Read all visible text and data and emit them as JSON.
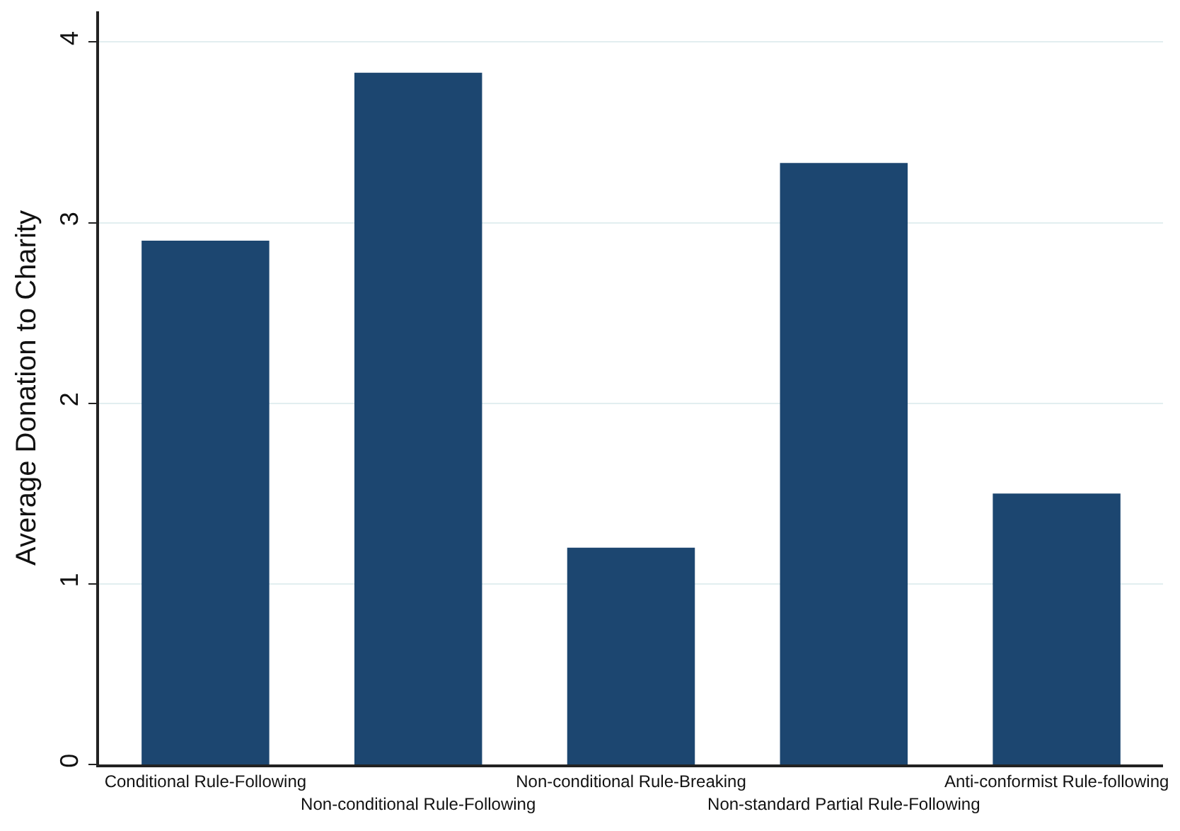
{
  "chart_data": {
    "type": "bar",
    "ylabel": "Average Donation to Charity",
    "categories": [
      "Conditional Rule-Following",
      "Non-conditional Rule-Following",
      "Non-conditional Rule-Breaking",
      "Non-standard Partial Rule-Following",
      "Anti-conformist Rule-following"
    ],
    "values": [
      2.9,
      3.83,
      1.2,
      3.33,
      1.5
    ],
    "color": "#1c4670",
    "ylim": [
      0,
      4.17
    ],
    "yticks": [
      0,
      1,
      2,
      3,
      4
    ],
    "grid": "y"
  }
}
